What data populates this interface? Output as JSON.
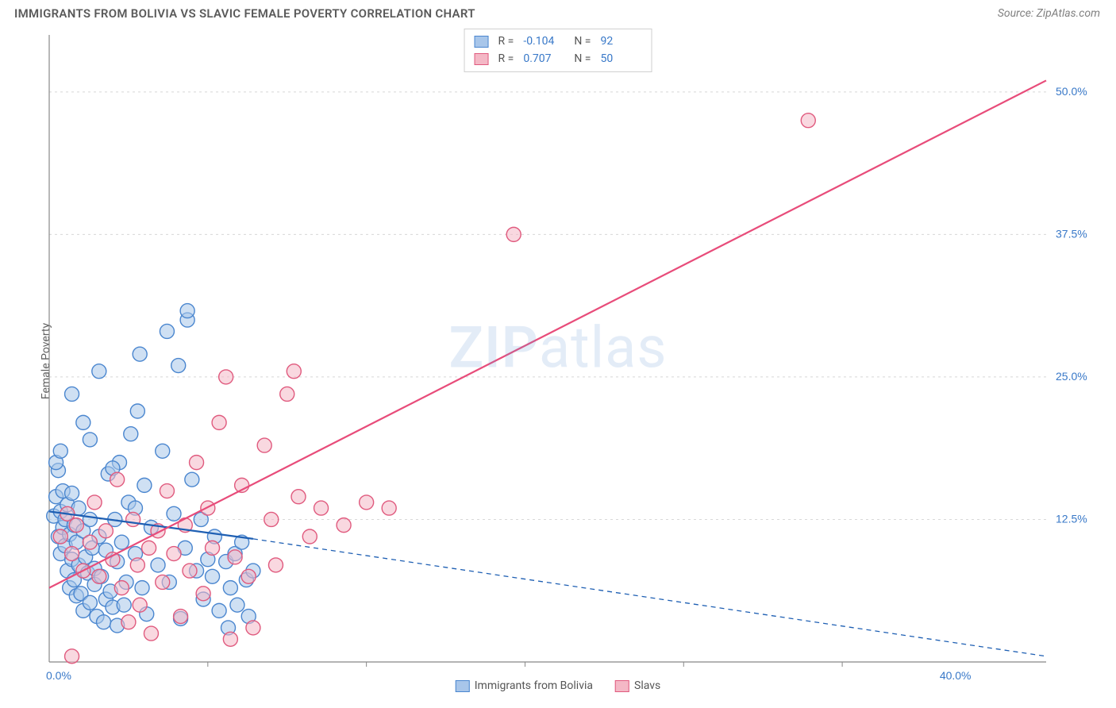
{
  "title": "IMMIGRANTS FROM BOLIVIA VS SLAVIC FEMALE POVERTY CORRELATION CHART",
  "source_label": "Source: ZipAtlas.com",
  "ylabel": "Female Poverty",
  "watermark": {
    "bold": "ZIP",
    "rest": "atlas"
  },
  "chart": {
    "type": "scatter",
    "xlim": [
      0,
      44
    ],
    "ylim": [
      0,
      55
    ],
    "grid_color": "#d8d8d8",
    "axis_color": "#888888",
    "background_color": "#ffffff",
    "y_ticks": [
      {
        "v": 12.5,
        "label": "12.5%"
      },
      {
        "v": 25.0,
        "label": "25.0%"
      },
      {
        "v": 37.5,
        "label": "37.5%"
      },
      {
        "v": 50.0,
        "label": "50.0%"
      }
    ],
    "x_ticks": [
      {
        "v": 0,
        "label": "0.0%"
      },
      {
        "v": 40,
        "label": "40.0%"
      }
    ],
    "x_minor_ticks": [
      7,
      14,
      21,
      28,
      35
    ],
    "tick_label_color": "#3878c8",
    "series": [
      {
        "name": "Immigrants from Bolivia",
        "fill": "#a8c6ea",
        "stroke": "#4a86cf",
        "fill_opacity": 0.55,
        "marker_r": 9,
        "R": "-0.104",
        "N": "92",
        "trend": {
          "solid_to_x": 9,
          "y_at_x0": 13.2,
          "y_at_xsolid": 10.8,
          "y_at_xmax": 0.5,
          "color": "#1e5fb3",
          "width": 2.2
        },
        "points": [
          [
            0.2,
            12.8
          ],
          [
            0.3,
            14.5
          ],
          [
            0.4,
            11.0
          ],
          [
            0.4,
            16.8
          ],
          [
            0.5,
            13.2
          ],
          [
            0.5,
            9.5
          ],
          [
            0.6,
            11.8
          ],
          [
            0.6,
            15.0
          ],
          [
            0.7,
            10.2
          ],
          [
            0.7,
            12.5
          ],
          [
            0.8,
            8.0
          ],
          [
            0.8,
            13.8
          ],
          [
            0.9,
            6.5
          ],
          [
            0.9,
            11.2
          ],
          [
            1.0,
            9.0
          ],
          [
            1.0,
            14.8
          ],
          [
            1.1,
            7.2
          ],
          [
            1.1,
            12.0
          ],
          [
            1.2,
            5.8
          ],
          [
            1.2,
            10.5
          ],
          [
            1.3,
            8.5
          ],
          [
            1.3,
            13.5
          ],
          [
            1.4,
            6.0
          ],
          [
            1.5,
            11.5
          ],
          [
            1.5,
            4.5
          ],
          [
            1.6,
            9.2
          ],
          [
            1.7,
            7.8
          ],
          [
            1.8,
            5.2
          ],
          [
            1.8,
            12.5
          ],
          [
            1.9,
            10.0
          ],
          [
            2.0,
            8.2
          ],
          [
            2.0,
            6.8
          ],
          [
            2.1,
            4.0
          ],
          [
            2.2,
            11.0
          ],
          [
            2.3,
            7.5
          ],
          [
            2.4,
            3.5
          ],
          [
            2.5,
            5.5
          ],
          [
            2.5,
            9.8
          ],
          [
            2.6,
            16.5
          ],
          [
            2.7,
            6.2
          ],
          [
            2.8,
            4.8
          ],
          [
            2.9,
            12.5
          ],
          [
            3.0,
            8.8
          ],
          [
            3.0,
            3.2
          ],
          [
            3.1,
            17.5
          ],
          [
            3.2,
            10.5
          ],
          [
            3.3,
            5.0
          ],
          [
            3.4,
            7.0
          ],
          [
            3.5,
            14.0
          ],
          [
            3.6,
            20.0
          ],
          [
            3.8,
            9.5
          ],
          [
            3.9,
            22.0
          ],
          [
            4.0,
            27.0
          ],
          [
            4.1,
            6.5
          ],
          [
            4.2,
            15.5
          ],
          [
            4.3,
            4.2
          ],
          [
            4.5,
            11.8
          ],
          [
            4.8,
            8.5
          ],
          [
            5.0,
            18.5
          ],
          [
            5.2,
            29.0
          ],
          [
            5.3,
            7.0
          ],
          [
            5.5,
            13.0
          ],
          [
            5.7,
            26.0
          ],
          [
            5.8,
            3.8
          ],
          [
            6.0,
            10.0
          ],
          [
            6.1,
            30.0
          ],
          [
            6.1,
            30.8
          ],
          [
            6.3,
            16.0
          ],
          [
            6.5,
            8.0
          ],
          [
            6.7,
            12.5
          ],
          [
            6.8,
            5.5
          ],
          [
            7.0,
            9.0
          ],
          [
            7.2,
            7.5
          ],
          [
            7.3,
            11.0
          ],
          [
            7.5,
            4.5
          ],
          [
            7.8,
            8.8
          ],
          [
            7.9,
            3.0
          ],
          [
            8.0,
            6.5
          ],
          [
            8.2,
            9.5
          ],
          [
            8.3,
            5.0
          ],
          [
            8.5,
            10.5
          ],
          [
            8.7,
            7.2
          ],
          [
            8.8,
            4.0
          ],
          [
            9.0,
            8.0
          ],
          [
            1.0,
            23.5
          ],
          [
            1.8,
            19.5
          ],
          [
            2.2,
            25.5
          ],
          [
            3.8,
            13.5
          ],
          [
            0.3,
            17.5
          ],
          [
            0.5,
            18.5
          ],
          [
            1.5,
            21.0
          ],
          [
            2.8,
            17.0
          ]
        ]
      },
      {
        "name": "Slavs",
        "fill": "#f4b8c6",
        "stroke": "#e05a7e",
        "fill_opacity": 0.55,
        "marker_r": 9,
        "R": "0.707",
        "N": "50",
        "trend": {
          "solid_to_x": 44,
          "y_at_x0": 6.5,
          "y_at_xsolid": 51.0,
          "y_at_xmax": 51.0,
          "color": "#e84c7a",
          "width": 2.2
        },
        "points": [
          [
            0.5,
            11.0
          ],
          [
            0.8,
            13.0
          ],
          [
            1.0,
            9.5
          ],
          [
            1.2,
            12.0
          ],
          [
            1.5,
            8.0
          ],
          [
            1.8,
            10.5
          ],
          [
            2.0,
            14.0
          ],
          [
            2.2,
            7.5
          ],
          [
            2.5,
            11.5
          ],
          [
            2.8,
            9.0
          ],
          [
            3.0,
            16.0
          ],
          [
            3.2,
            6.5
          ],
          [
            3.5,
            3.5
          ],
          [
            3.7,
            12.5
          ],
          [
            3.9,
            8.5
          ],
          [
            4.0,
            5.0
          ],
          [
            4.4,
            10.0
          ],
          [
            4.5,
            2.5
          ],
          [
            4.8,
            11.5
          ],
          [
            5.0,
            7.0
          ],
          [
            5.2,
            15.0
          ],
          [
            5.5,
            9.5
          ],
          [
            5.8,
            4.0
          ],
          [
            6.0,
            12.0
          ],
          [
            6.2,
            8.0
          ],
          [
            6.5,
            17.5
          ],
          [
            6.8,
            6.0
          ],
          [
            7.0,
            13.5
          ],
          [
            7.2,
            10.0
          ],
          [
            7.5,
            21.0
          ],
          [
            7.8,
            25.0
          ],
          [
            8.0,
            2.0
          ],
          [
            8.2,
            9.2
          ],
          [
            8.5,
            15.5
          ],
          [
            8.8,
            7.5
          ],
          [
            9.0,
            3.0
          ],
          [
            9.5,
            19.0
          ],
          [
            9.8,
            12.5
          ],
          [
            10.0,
            8.5
          ],
          [
            10.5,
            23.5
          ],
          [
            10.8,
            25.5
          ],
          [
            11.0,
            14.5
          ],
          [
            11.5,
            11.0
          ],
          [
            12.0,
            13.5
          ],
          [
            13.0,
            12.0
          ],
          [
            14.0,
            14.0
          ],
          [
            15.0,
            13.5
          ],
          [
            20.5,
            37.5
          ],
          [
            33.5,
            47.5
          ],
          [
            1.0,
            0.5
          ]
        ]
      }
    ],
    "legend_bottom": [
      {
        "label": "Immigrants from Bolivia",
        "fill": "#a8c6ea",
        "stroke": "#4a86cf"
      },
      {
        "label": "Slavs",
        "fill": "#f4b8c6",
        "stroke": "#e05a7e"
      }
    ]
  }
}
